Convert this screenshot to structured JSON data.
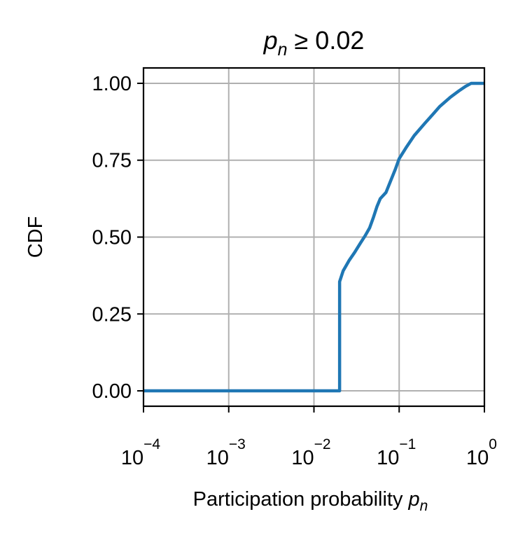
{
  "chart_data": {
    "type": "line",
    "title": {
      "var": "p",
      "sub": "n",
      "rest": " ≥ 0.02"
    },
    "xlabel": {
      "text": "Participation probability ",
      "var": "p",
      "sub": "n"
    },
    "ylabel": "CDF",
    "x_scale": "log",
    "xlim": [
      0.0001,
      1
    ],
    "ylim": [
      -0.05,
      1.05
    ],
    "grid": true,
    "x_ticks": [
      {
        "value": 0.0001,
        "base": "10",
        "exp": "−4"
      },
      {
        "value": 0.001,
        "base": "10",
        "exp": "−3"
      },
      {
        "value": 0.01,
        "base": "10",
        "exp": "−2"
      },
      {
        "value": 0.1,
        "base": "10",
        "exp": "−1"
      },
      {
        "value": 1,
        "base": "10",
        "exp": "0"
      }
    ],
    "y_ticks": [
      {
        "value": 0.0,
        "label": "0.00"
      },
      {
        "value": 0.25,
        "label": "0.25"
      },
      {
        "value": 0.5,
        "label": "0.50"
      },
      {
        "value": 0.75,
        "label": "0.75"
      },
      {
        "value": 1.0,
        "label": "1.00"
      }
    ],
    "series": [
      {
        "color": "#1f77b4",
        "x": [
          0.0001,
          0.02,
          0.02,
          0.022,
          0.026,
          0.03,
          0.035,
          0.04,
          0.045,
          0.05,
          0.055,
          0.06,
          0.07,
          0.08,
          0.09,
          0.1,
          0.12,
          0.15,
          0.2,
          0.25,
          0.3,
          0.4,
          0.5,
          0.6,
          0.7,
          0.8,
          1.0
        ],
        "y": [
          0.0,
          0.0,
          0.355,
          0.39,
          0.425,
          0.45,
          0.48,
          0.505,
          0.53,
          0.565,
          0.6,
          0.625,
          0.645,
          0.685,
          0.72,
          0.755,
          0.79,
          0.83,
          0.87,
          0.9,
          0.925,
          0.955,
          0.975,
          0.99,
          1.0,
          1.0,
          1.0
        ]
      }
    ]
  }
}
